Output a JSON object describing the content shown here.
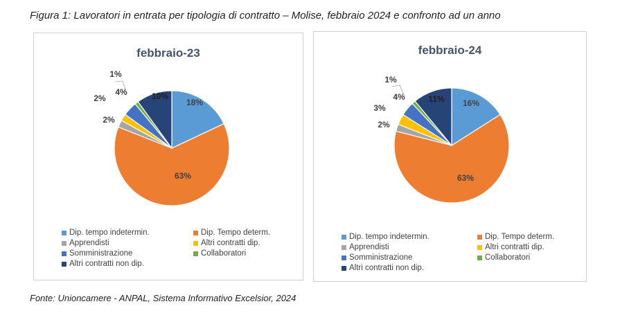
{
  "caption": "Figura 1: Lavoratori in entrata per tipologia di contratto – Molise, febbraio 2024 e confronto ad un anno",
  "source": "Fonte: Unioncamere - ANPAL, Sistema Informativo Excelsior, 2024",
  "chart_data": [
    {
      "type": "pie",
      "title": "febbraio-23",
      "categories": [
        "Dip. tempo indetermin.",
        "Dip. Tempo determ.",
        "Apprendisti",
        "Altri contratti dip.",
        "Somministrazione",
        "Collaboratori",
        "Altri contratti non dip."
      ],
      "values": [
        18,
        63,
        2,
        2,
        4,
        1,
        10
      ],
      "labels": [
        "18%",
        "63%",
        "2%",
        "2%",
        "4%",
        "1%",
        "10%"
      ],
      "colors": [
        "#5b9bd5",
        "#ed7d31",
        "#a5a5a5",
        "#ffc000",
        "#4472c4",
        "#70ad47",
        "#264478"
      ],
      "legend": "bottom"
    },
    {
      "type": "pie",
      "title": "febbraio-24",
      "categories": [
        "Dip. tempo indetermin.",
        "Dip. Tempo determ.",
        "Apprendisti",
        "Altri contratti dip.",
        "Somministrazione",
        "Collaboratori",
        "Altri contratti non dip."
      ],
      "values": [
        16,
        63,
        2,
        3,
        4,
        1,
        11
      ],
      "labels": [
        "16%",
        "63%",
        "2%",
        "3%",
        "4%",
        "1%",
        "11%"
      ],
      "colors": [
        "#5b9bd5",
        "#ed7d31",
        "#a5a5a5",
        "#ffc000",
        "#4472c4",
        "#70ad47",
        "#264478"
      ],
      "legend": "bottom"
    }
  ]
}
